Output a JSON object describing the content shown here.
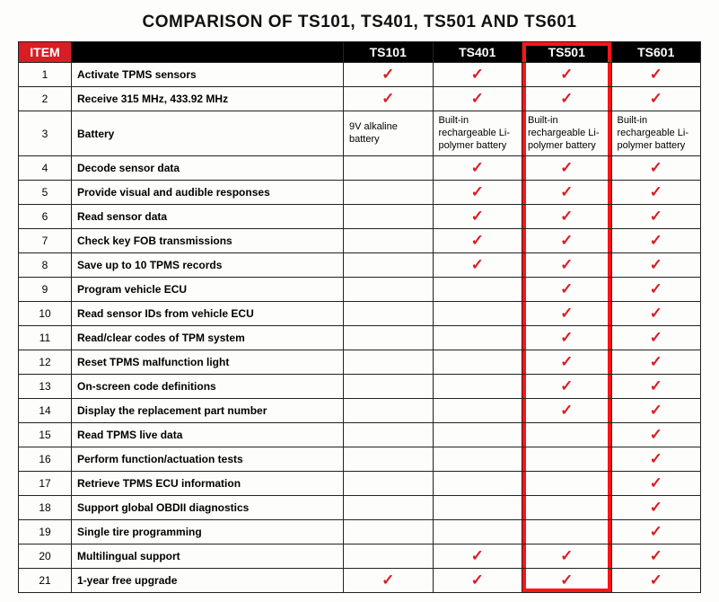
{
  "title": "COMPARISON OF TS101, TS401, TS501 AND TS601",
  "columns": {
    "item": "ITEM",
    "feature": "",
    "products": [
      "TS101",
      "TS401",
      "TS501",
      "TS601"
    ]
  },
  "highlight_product_index": 2,
  "colors": {
    "item_header_bg": "#d81e24",
    "product_header_bg": "#000000",
    "header_text": "#ffffff",
    "border": "#222222",
    "check": "#d81e24",
    "highlight": "#ff1418",
    "body_bg": "#fdfdfb"
  },
  "check_glyph": "✓",
  "rows": [
    {
      "n": 1,
      "feature": "Activate TPMS sensors",
      "vals": [
        "check",
        "check",
        "check",
        "check"
      ]
    },
    {
      "n": 2,
      "feature": "Receive 315 MHz, 433.92 MHz",
      "vals": [
        "check",
        "check",
        "check",
        "check"
      ]
    },
    {
      "n": 3,
      "feature": "Battery",
      "vals": [
        "9V alkaline battery",
        "Built-in rechargeable Li-polymer battery",
        "Built-in rechargeable Li-polymer battery",
        "Built-in rechargeable Li-polymer battery"
      ]
    },
    {
      "n": 4,
      "feature": "Decode sensor data",
      "vals": [
        "",
        "check",
        "check",
        "check"
      ]
    },
    {
      "n": 5,
      "feature": "Provide visual and audible responses",
      "vals": [
        "",
        "check",
        "check",
        "check"
      ]
    },
    {
      "n": 6,
      "feature": "Read sensor data",
      "vals": [
        "",
        "check",
        "check",
        "check"
      ]
    },
    {
      "n": 7,
      "feature": "Check key FOB transmissions",
      "vals": [
        "",
        "check",
        "check",
        "check"
      ]
    },
    {
      "n": 8,
      "feature": "Save up to 10 TPMS records",
      "vals": [
        "",
        "check",
        "check",
        "check"
      ]
    },
    {
      "n": 9,
      "feature": "Program vehicle ECU",
      "vals": [
        "",
        "",
        "check",
        "check"
      ]
    },
    {
      "n": 10,
      "feature": "Read sensor IDs from vehicle ECU",
      "vals": [
        "",
        "",
        "check",
        "check"
      ]
    },
    {
      "n": 11,
      "feature": "Read/clear codes of TPM system",
      "vals": [
        "",
        "",
        "check",
        "check"
      ]
    },
    {
      "n": 12,
      "feature": "Reset TPMS malfunction light",
      "vals": [
        "",
        "",
        "check",
        "check"
      ]
    },
    {
      "n": 13,
      "feature": "On-screen code definitions",
      "vals": [
        "",
        "",
        "check",
        "check"
      ]
    },
    {
      "n": 14,
      "feature": "Display the replacement part number",
      "vals": [
        "",
        "",
        "check",
        "check"
      ]
    },
    {
      "n": 15,
      "feature": "Read TPMS live data",
      "vals": [
        "",
        "",
        "",
        "check"
      ]
    },
    {
      "n": 16,
      "feature": "Perform function/actuation tests",
      "vals": [
        "",
        "",
        "",
        "check"
      ]
    },
    {
      "n": 17,
      "feature": "Retrieve TPMS ECU information",
      "vals": [
        "",
        "",
        "",
        "check"
      ]
    },
    {
      "n": 18,
      "feature": "Support global OBDII diagnostics",
      "vals": [
        "",
        "",
        "",
        "check"
      ]
    },
    {
      "n": 19,
      "feature": "Single tire programming",
      "vals": [
        "",
        "",
        "",
        "check"
      ]
    },
    {
      "n": 20,
      "feature": "Multilingual support",
      "vals": [
        "",
        "check",
        "check",
        "check"
      ]
    },
    {
      "n": 21,
      "feature": "1-year free upgrade",
      "vals": [
        "check",
        "check",
        "check",
        "check"
      ]
    }
  ]
}
